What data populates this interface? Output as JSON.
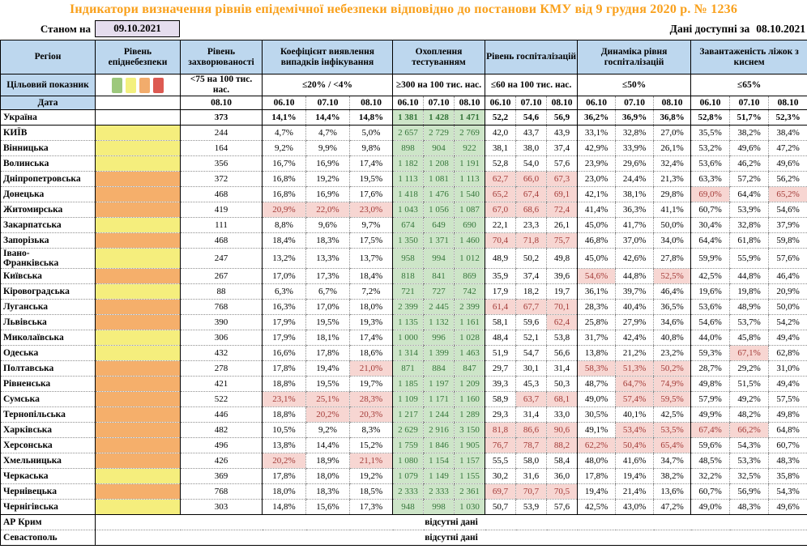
{
  "title": "Індикатори визначення рівнів епідемічної небезпеки відповідно до постанови КМУ від 9 грудня 2020 р. № 1236",
  "as_of": {
    "label": "Станом на",
    "date": "09.10.2021"
  },
  "available": {
    "label": "Дані доступні за",
    "date": "08.10.2021"
  },
  "colors": {
    "title": "#F9A01B",
    "headerbg": "#BDD7EE",
    "yellow": "#F5EE7D",
    "orange": "#F5AF6B",
    "greenbg": "#CDE5C8",
    "greentx": "#35753A",
    "redbg": "#F7D6D2",
    "redtx": "#A33B38",
    "asofbg": "#E5DDEE"
  },
  "legend_colors": [
    "#9DC87C",
    "#F3F07E",
    "#F2AC6C",
    "#DD5A52"
  ],
  "header": {
    "region_label": "Регіон",
    "target_label": "Цільовий показник",
    "date_label": "Дата",
    "groups": [
      {
        "label": "Рівень епіднебезпеки",
        "target": "",
        "dates": []
      },
      {
        "label": "Рівень захворюваності",
        "target": "<75 на 100 тис. нас.",
        "dates": [
          "08.10"
        ]
      },
      {
        "label": "Коефіцієнт виявлення випадків інфікування",
        "target": "≤20% / <4%",
        "dates": [
          "06.10",
          "07.10",
          "08.10"
        ]
      },
      {
        "label": "Охоплення тестуванням",
        "target": "≥300 на 100 тис. нас.",
        "dates": [
          "06.10",
          "07.10",
          "08.10"
        ]
      },
      {
        "label": "Рівень госпіталізацій",
        "target": "≤60 на 100 тис. нас.",
        "dates": [
          "06.10",
          "07.10",
          "08.10"
        ]
      },
      {
        "label": "Динаміка рівня госпіталізацій",
        "target": "≤50%",
        "dates": [
          "06.10",
          "07.10",
          "08.10"
        ]
      },
      {
        "label": "Завантаженість ліжок з киснем",
        "target": "≤65%",
        "dates": [
          "06.10",
          "07.10",
          "08.10"
        ]
      }
    ]
  },
  "no_data_text": "відсутні дані",
  "rows": [
    {
      "region": "Україна",
      "level": "none",
      "bold": 1,
      "morbidity": "373",
      "coef": [
        "14,1%",
        "14,4%",
        "14,8%"
      ],
      "test": [
        "1 381",
        "1 428",
        "1 471"
      ],
      "hosp": [
        "52,2",
        "54,6",
        "56,9"
      ],
      "dyn": [
        "36,2%",
        "36,9%",
        "36,8%"
      ],
      "beds": [
        "52,8%",
        "51,7%",
        "52,3%"
      ],
      "rb_solid": 1
    },
    {
      "region": "КИЇВ",
      "level": "yellow",
      "morbidity": "244",
      "coef": [
        "4,7%",
        "4,7%",
        "5,0%"
      ],
      "test": [
        "2 657",
        "2 729",
        "2 769"
      ],
      "hosp": [
        "42,0",
        "43,7",
        "43,9"
      ],
      "dyn": [
        "33,1%",
        "32,8%",
        "27,0%"
      ],
      "beds": [
        "35,5%",
        "38,2%",
        "38,4%"
      ]
    },
    {
      "region": "Вінницька",
      "level": "yellow",
      "morbidity": "164",
      "coef": [
        "9,2%",
        "9,9%",
        "9,8%"
      ],
      "test": [
        "898",
        "904",
        "922"
      ],
      "hosp": [
        "38,1",
        "38,0",
        "37,4"
      ],
      "dyn": [
        "42,9%",
        "33,9%",
        "26,1%"
      ],
      "beds": [
        "53,2%",
        "49,6%",
        "47,2%"
      ]
    },
    {
      "region": "Волинська",
      "level": "yellow",
      "morbidity": "356",
      "coef": [
        "16,7%",
        "16,9%",
        "17,4%"
      ],
      "test": [
        "1 182",
        "1 208",
        "1 191"
      ],
      "hosp": [
        "52,8",
        "54,0",
        "57,6"
      ],
      "dyn": [
        "23,9%",
        "29,6%",
        "32,4%"
      ],
      "beds": [
        "53,6%",
        "46,2%",
        "49,6%"
      ]
    },
    {
      "region": "Дніпропетровська",
      "level": "orange",
      "morbidity": "372",
      "coef": [
        "16,8%",
        "19,2%",
        "19,5%"
      ],
      "test": [
        "1 113",
        "1 081",
        "1 113"
      ],
      "hosp": [
        "62,7",
        "66,0",
        "67,3"
      ],
      "hosp_red": [
        1,
        1,
        1
      ],
      "dyn": [
        "23,0%",
        "24,4%",
        "21,3%"
      ],
      "beds": [
        "63,3%",
        "57,2%",
        "56,2%"
      ]
    },
    {
      "region": "Донецька",
      "level": "orange",
      "morbidity": "468",
      "coef": [
        "16,8%",
        "16,9%",
        "17,6%"
      ],
      "test": [
        "1 418",
        "1 476",
        "1 540"
      ],
      "hosp": [
        "65,2",
        "67,4",
        "69,1"
      ],
      "hosp_red": [
        1,
        1,
        1
      ],
      "dyn": [
        "42,1%",
        "38,1%",
        "29,8%"
      ],
      "beds": [
        "69,0%",
        "64,4%",
        "65,2%"
      ],
      "beds_red": [
        1,
        0,
        1
      ]
    },
    {
      "region": "Житомирська",
      "level": "orange",
      "morbidity": "419",
      "coef": [
        "20,9%",
        "22,0%",
        "23,0%"
      ],
      "coef_red": [
        1,
        1,
        1
      ],
      "test": [
        "1 043",
        "1 056",
        "1 087"
      ],
      "hosp": [
        "67,0",
        "68,6",
        "72,4"
      ],
      "hosp_red": [
        1,
        1,
        1
      ],
      "dyn": [
        "41,4%",
        "36,3%",
        "41,1%"
      ],
      "beds": [
        "60,7%",
        "53,9%",
        "54,6%"
      ]
    },
    {
      "region": "Закарпатська",
      "level": "yellow",
      "morbidity": "111",
      "coef": [
        "8,8%",
        "9,6%",
        "9,7%"
      ],
      "test": [
        "674",
        "649",
        "690"
      ],
      "hosp": [
        "22,1",
        "23,3",
        "26,1"
      ],
      "dyn": [
        "45,0%",
        "41,7%",
        "50,0%"
      ],
      "beds": [
        "30,4%",
        "32,8%",
        "37,9%"
      ]
    },
    {
      "region": "Запорізька",
      "level": "orange",
      "morbidity": "468",
      "coef": [
        "18,4%",
        "18,3%",
        "17,5%"
      ],
      "test": [
        "1 350",
        "1 371",
        "1 460"
      ],
      "hosp": [
        "70,4",
        "71,8",
        "75,7"
      ],
      "hosp_red": [
        1,
        1,
        1
      ],
      "dyn": [
        "46,8%",
        "37,0%",
        "34,0%"
      ],
      "beds": [
        "64,4%",
        "61,8%",
        "59,8%"
      ]
    },
    {
      "region": "Івано-\nФранківська",
      "level": "yellow",
      "morbidity": "247",
      "coef": [
        "13,2%",
        "13,3%",
        "13,7%"
      ],
      "test": [
        "958",
        "994",
        "1 012"
      ],
      "hosp": [
        "48,9",
        "50,2",
        "49,8"
      ],
      "dyn": [
        "45,0%",
        "42,6%",
        "27,8%"
      ],
      "beds": [
        "59,9%",
        "55,9%",
        "57,6%"
      ]
    },
    {
      "region": "Київська",
      "level": "orange",
      "morbidity": "267",
      "coef": [
        "17,0%",
        "17,3%",
        "18,4%"
      ],
      "test": [
        "818",
        "841",
        "869"
      ],
      "hosp": [
        "35,9",
        "37,4",
        "39,6"
      ],
      "dyn": [
        "54,6%",
        "44,8%",
        "52,5%"
      ],
      "dyn_red": [
        1,
        0,
        1
      ],
      "beds": [
        "42,5%",
        "44,8%",
        "46,4%"
      ]
    },
    {
      "region": "Кіровоградська",
      "level": "yellow",
      "morbidity": "88",
      "coef": [
        "6,3%",
        "6,7%",
        "7,2%"
      ],
      "test": [
        "721",
        "727",
        "742"
      ],
      "hosp": [
        "17,9",
        "18,2",
        "19,7"
      ],
      "dyn": [
        "36,1%",
        "39,7%",
        "46,4%"
      ],
      "beds": [
        "19,6%",
        "19,8%",
        "20,9%"
      ]
    },
    {
      "region": "Луганська",
      "level": "orange",
      "morbidity": "768",
      "coef": [
        "16,3%",
        "17,0%",
        "18,0%"
      ],
      "test": [
        "2 399",
        "2 445",
        "2 399"
      ],
      "hosp": [
        "61,4",
        "67,7",
        "70,1"
      ],
      "hosp_red": [
        1,
        1,
        1
      ],
      "dyn": [
        "28,3%",
        "40,4%",
        "36,5%"
      ],
      "beds": [
        "53,6%",
        "48,9%",
        "50,0%"
      ]
    },
    {
      "region": "Львівська",
      "level": "orange",
      "morbidity": "390",
      "coef": [
        "17,9%",
        "19,5%",
        "19,3%"
      ],
      "test": [
        "1 135",
        "1 132",
        "1 161"
      ],
      "hosp": [
        "58,1",
        "59,6",
        "62,4"
      ],
      "hosp_red": [
        0,
        0,
        1
      ],
      "dyn": [
        "25,8%",
        "27,9%",
        "34,6%"
      ],
      "beds": [
        "54,6%",
        "53,7%",
        "54,2%"
      ]
    },
    {
      "region": "Миколаївська",
      "level": "yellow",
      "morbidity": "306",
      "coef": [
        "17,9%",
        "18,1%",
        "17,4%"
      ],
      "test": [
        "1 000",
        "996",
        "1 028"
      ],
      "hosp": [
        "48,4",
        "52,1",
        "53,8"
      ],
      "dyn": [
        "31,7%",
        "42,4%",
        "40,8%"
      ],
      "beds": [
        "44,0%",
        "45,8%",
        "49,4%"
      ]
    },
    {
      "region": "Одеська",
      "level": "yellow",
      "morbidity": "432",
      "coef": [
        "16,6%",
        "17,8%",
        "18,6%"
      ],
      "test": [
        "1 314",
        "1 399",
        "1 463"
      ],
      "hosp": [
        "51,9",
        "54,7",
        "56,6"
      ],
      "dyn": [
        "13,8%",
        "21,2%",
        "23,2%"
      ],
      "beds": [
        "59,3%",
        "67,1%",
        "62,8%"
      ],
      "beds_red": [
        0,
        1,
        0
      ]
    },
    {
      "region": "Полтавська",
      "level": "orange",
      "morbidity": "278",
      "coef": [
        "17,8%",
        "19,4%",
        "21,0%"
      ],
      "coef_red": [
        0,
        0,
        1
      ],
      "test": [
        "871",
        "884",
        "847"
      ],
      "hosp": [
        "29,7",
        "30,1",
        "31,4"
      ],
      "dyn": [
        "58,3%",
        "51,3%",
        "50,2%"
      ],
      "dyn_red": [
        1,
        1,
        1
      ],
      "beds": [
        "28,7%",
        "29,2%",
        "31,0%"
      ]
    },
    {
      "region": "Рівненська",
      "level": "orange",
      "morbidity": "421",
      "coef": [
        "18,8%",
        "19,5%",
        "19,7%"
      ],
      "test": [
        "1 185",
        "1 197",
        "1 209"
      ],
      "hosp": [
        "39,3",
        "45,3",
        "50,3"
      ],
      "dyn": [
        "48,7%",
        "64,7%",
        "74,9%"
      ],
      "dyn_red": [
        0,
        1,
        1
      ],
      "beds": [
        "49,8%",
        "51,5%",
        "49,4%"
      ]
    },
    {
      "region": "Сумська",
      "level": "orange",
      "morbidity": "522",
      "coef": [
        "23,1%",
        "25,1%",
        "28,3%"
      ],
      "coef_red": [
        1,
        1,
        1
      ],
      "test": [
        "1 109",
        "1 171",
        "1 160"
      ],
      "hosp": [
        "58,9",
        "63,7",
        "68,1"
      ],
      "hosp_red": [
        0,
        1,
        1
      ],
      "dyn": [
        "49,0%",
        "57,4%",
        "59,5%"
      ],
      "dyn_red": [
        0,
        1,
        1
      ],
      "beds": [
        "57,9%",
        "49,2%",
        "57,5%"
      ]
    },
    {
      "region": "Тернопільська",
      "level": "orange",
      "morbidity": "446",
      "coef": [
        "18,8%",
        "20,2%",
        "20,3%"
      ],
      "coef_red": [
        0,
        1,
        1
      ],
      "test": [
        "1 217",
        "1 244",
        "1 289"
      ],
      "hosp": [
        "29,3",
        "31,4",
        "33,0"
      ],
      "dyn": [
        "30,5%",
        "40,1%",
        "42,5%"
      ],
      "beds": [
        "49,9%",
        "48,2%",
        "49,8%"
      ]
    },
    {
      "region": "Харківська",
      "level": "orange",
      "morbidity": "482",
      "coef": [
        "10,5%",
        "9,2%",
        "8,3%"
      ],
      "test": [
        "2 629",
        "2 916",
        "3 150"
      ],
      "hosp": [
        "81,8",
        "86,6",
        "90,6"
      ],
      "hosp_red": [
        1,
        1,
        1
      ],
      "dyn": [
        "49,1%",
        "53,4%",
        "53,5%"
      ],
      "dyn_red": [
        0,
        1,
        1
      ],
      "beds": [
        "67,4%",
        "66,2%",
        "64,8%"
      ],
      "beds_red": [
        1,
        1,
        0
      ]
    },
    {
      "region": "Херсонська",
      "level": "orange",
      "morbidity": "496",
      "coef": [
        "13,8%",
        "14,4%",
        "15,2%"
      ],
      "test": [
        "1 759",
        "1 846",
        "1 905"
      ],
      "hosp": [
        "76,7",
        "78,7",
        "88,2"
      ],
      "hosp_red": [
        1,
        1,
        1
      ],
      "dyn": [
        "62,2%",
        "50,4%",
        "65,4%"
      ],
      "dyn_red": [
        1,
        1,
        1
      ],
      "beds": [
        "59,6%",
        "54,3%",
        "60,7%"
      ]
    },
    {
      "region": "Хмельницька",
      "level": "orange",
      "morbidity": "426",
      "coef": [
        "20,2%",
        "18,9%",
        "21,1%"
      ],
      "coef_red": [
        1,
        0,
        1
      ],
      "test": [
        "1 080",
        "1 154",
        "1 157"
      ],
      "hosp": [
        "55,5",
        "58,0",
        "58,4"
      ],
      "dyn": [
        "48,0%",
        "41,6%",
        "34,7%"
      ],
      "beds": [
        "48,5%",
        "53,3%",
        "48,3%"
      ]
    },
    {
      "region": "Черкаська",
      "level": "yellow",
      "morbidity": "369",
      "coef": [
        "17,8%",
        "18,0%",
        "19,2%"
      ],
      "test": [
        "1 079",
        "1 149",
        "1 155"
      ],
      "hosp": [
        "30,2",
        "31,6",
        "36,0"
      ],
      "dyn": [
        "17,8%",
        "19,4%",
        "38,2%"
      ],
      "beds": [
        "32,2%",
        "32,5%",
        "35,8%"
      ]
    },
    {
      "region": "Чернівецька",
      "level": "orange",
      "morbidity": "768",
      "coef": [
        "18,0%",
        "18,3%",
        "18,5%"
      ],
      "test": [
        "2 333",
        "2 333",
        "2 361"
      ],
      "hosp": [
        "69,7",
        "70,7",
        "70,5"
      ],
      "hosp_red": [
        1,
        1,
        1
      ],
      "dyn": [
        "19,4%",
        "21,4%",
        "13,6%"
      ],
      "beds": [
        "60,7%",
        "56,9%",
        "54,3%"
      ]
    },
    {
      "region": "Чернігівська",
      "level": "yellow",
      "morbidity": "303",
      "coef": [
        "14,8%",
        "15,6%",
        "17,3%"
      ],
      "test": [
        "948",
        "998",
        "1 030"
      ],
      "hosp": [
        "50,7",
        "53,9",
        "57,6"
      ],
      "dyn": [
        "42,5%",
        "43,0%",
        "47,2%"
      ],
      "beds": [
        "49,0%",
        "48,3%",
        "49,6%"
      ],
      "rb_solid": 1
    },
    {
      "region": "АР Крим",
      "no_data": 1
    },
    {
      "region": "Севастополь",
      "no_data": 1
    }
  ]
}
